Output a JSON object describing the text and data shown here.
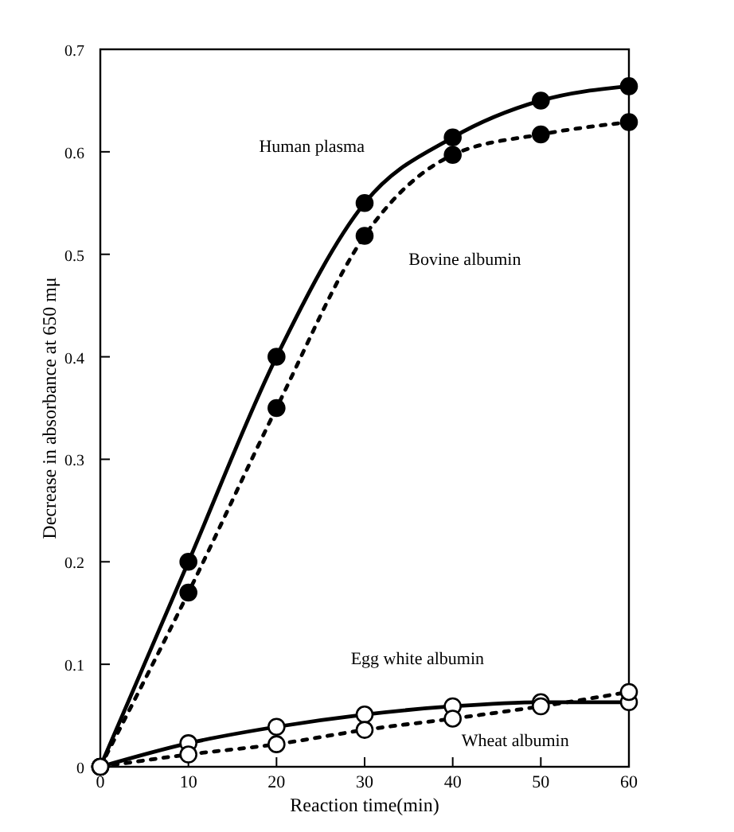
{
  "chart_data": {
    "type": "line",
    "xlabel": "Reaction time(min)",
    "ylabel": "Decrease in absorbance at 650 mμ",
    "x": [
      0,
      10,
      20,
      30,
      40,
      50,
      60
    ],
    "series": [
      {
        "name": "Human plasma",
        "color": "#000000",
        "line_style": "solid",
        "values": [
          0,
          0.2,
          0.4,
          0.55,
          0.614,
          0.65,
          0.664
        ]
      },
      {
        "name": "Bovine albumin",
        "color": "#000000",
        "line_style": "dotted",
        "values": [
          0,
          0.17,
          0.35,
          0.518,
          0.597,
          0.617,
          0.629
        ]
      },
      {
        "name": "Egg white albumin",
        "color": "#000000",
        "line_style": "solid",
        "values": [
          0,
          0.023,
          0.039,
          0.051,
          0.059,
          0.063,
          0.063
        ]
      },
      {
        "name": "Wheat albumin",
        "color": "#000000",
        "line_style": "dotted",
        "values": [
          0,
          0.012,
          0.022,
          0.036,
          0.047,
          0.059,
          0.073
        ]
      }
    ],
    "xlim": [
      0,
      60
    ],
    "xticks": [
      0,
      10,
      20,
      30,
      40,
      50,
      60
    ],
    "ylim": [
      0,
      0.7
    ],
    "yticks": [
      0,
      0.1,
      0.2,
      0.3,
      0.4,
      0.5,
      0.6,
      0.7
    ],
    "marker": "circle",
    "grid": false
  }
}
